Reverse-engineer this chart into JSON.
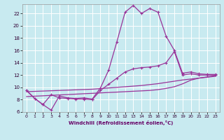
{
  "title": "",
  "xlabel": "Windchill (Refroidissement éolien,°C)",
  "bg_color": "#c8eaf0",
  "line_color": "#993399",
  "grid_color": "#ffffff",
  "xlim": [
    -0.5,
    23.5
  ],
  "ylim": [
    6,
    23.5
  ],
  "yticks": [
    6,
    8,
    10,
    12,
    14,
    16,
    18,
    20,
    22
  ],
  "xticks": [
    0,
    1,
    2,
    3,
    4,
    5,
    6,
    7,
    8,
    9,
    10,
    11,
    12,
    13,
    14,
    15,
    16,
    17,
    18,
    19,
    20,
    21,
    22,
    23
  ],
  "line1_x": [
    0,
    1,
    2,
    3,
    4,
    5,
    6,
    7,
    8,
    9,
    10,
    11,
    12,
    13,
    14,
    15,
    16,
    17,
    18,
    19,
    20,
    21,
    22,
    23
  ],
  "line1_y": [
    9.5,
    8.2,
    7.2,
    6.3,
    8.6,
    8.3,
    8.2,
    8.3,
    8.1,
    9.9,
    12.8,
    17.4,
    22.2,
    23.3,
    22.0,
    22.8,
    22.2,
    18.3,
    16.0,
    12.3,
    12.5,
    12.2,
    12.1,
    12.1
  ],
  "line2_x": [
    0,
    1,
    2,
    3,
    4,
    5,
    6,
    7,
    8,
    9,
    10,
    11,
    12,
    13,
    14,
    15,
    16,
    17,
    18,
    19,
    20,
    21,
    22,
    23
  ],
  "line2_y": [
    9.5,
    8.2,
    7.2,
    8.8,
    8.3,
    8.2,
    8.1,
    8.1,
    8.0,
    9.5,
    10.5,
    11.5,
    12.5,
    13.0,
    13.2,
    13.3,
    13.5,
    14.0,
    15.8,
    12.0,
    12.2,
    12.0,
    12.0,
    12.0
  ],
  "line3_x": [
    0,
    1,
    2,
    3,
    4,
    5,
    6,
    7,
    8,
    9,
    10,
    11,
    12,
    13,
    14,
    15,
    16,
    17,
    18,
    19,
    20,
    21,
    22,
    23
  ],
  "line3_y": [
    8.5,
    8.57,
    8.63,
    8.7,
    8.77,
    8.83,
    8.9,
    8.97,
    9.03,
    9.1,
    9.17,
    9.23,
    9.3,
    9.37,
    9.43,
    9.5,
    9.63,
    9.83,
    10.1,
    10.57,
    11.17,
    11.5,
    11.7,
    11.9
  ],
  "line4_x": [
    0,
    1,
    2,
    3,
    4,
    5,
    6,
    7,
    8,
    9,
    10,
    11,
    12,
    13,
    14,
    15,
    16,
    17,
    18,
    19,
    20,
    21,
    22,
    23
  ],
  "line4_y": [
    9.3,
    9.35,
    9.4,
    9.45,
    9.5,
    9.55,
    9.6,
    9.65,
    9.7,
    9.8,
    9.9,
    10.0,
    10.1,
    10.2,
    10.3,
    10.45,
    10.6,
    10.8,
    11.0,
    11.2,
    11.35,
    11.5,
    11.65,
    11.8
  ]
}
